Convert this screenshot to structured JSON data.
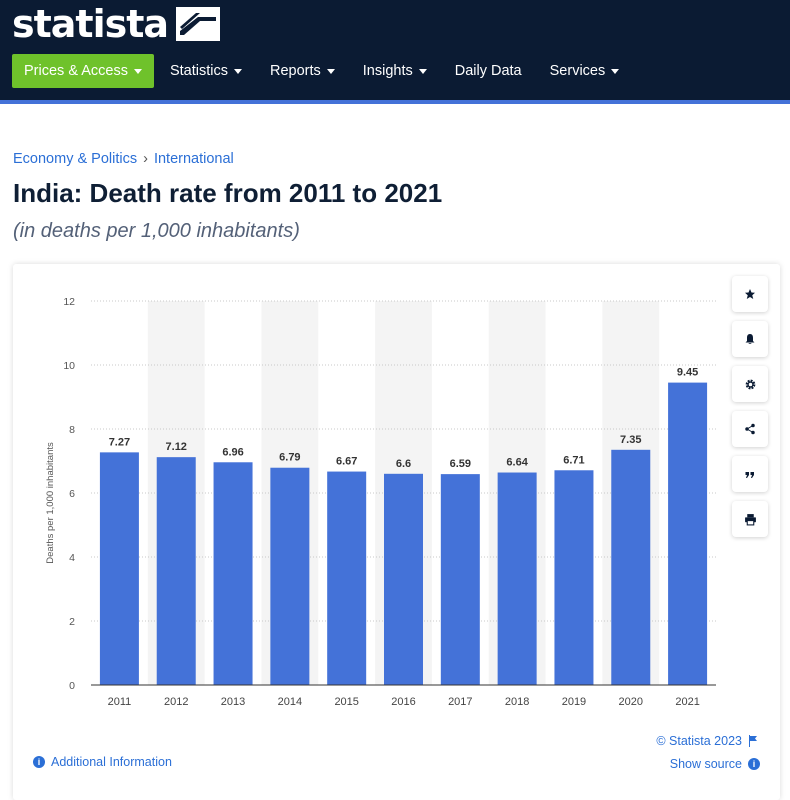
{
  "header": {
    "logo_text": "statista",
    "nav": [
      {
        "label": "Prices & Access",
        "caret": true
      },
      {
        "label": "Statistics",
        "caret": true
      },
      {
        "label": "Reports",
        "caret": true
      },
      {
        "label": "Insights",
        "caret": true
      },
      {
        "label": "Daily Data",
        "caret": false
      },
      {
        "label": "Services",
        "caret": true
      }
    ]
  },
  "breadcrumb": {
    "first": "Economy & Politics",
    "separator": "›",
    "second": "International"
  },
  "page_title": "India: Death rate from 2011 to 2021",
  "page_subtitle": "(in deaths per 1,000 inhabitants)",
  "chart_data": {
    "type": "bar",
    "categories": [
      "2011",
      "2012",
      "2013",
      "2014",
      "2015",
      "2016",
      "2017",
      "2018",
      "2019",
      "2020",
      "2021"
    ],
    "values": [
      7.27,
      7.12,
      6.96,
      6.79,
      6.67,
      6.6,
      6.59,
      6.64,
      6.71,
      7.35,
      9.45
    ],
    "value_labels": [
      "7.27",
      "7.12",
      "6.96",
      "6.79",
      "6.67",
      "6.6",
      "6.59",
      "6.64",
      "6.71",
      "7.35",
      "9.45"
    ],
    "ylabel": "Deaths per 1,000 inhabitants",
    "xlabel": "",
    "ylim": [
      0,
      12
    ],
    "yticks": [
      0,
      2,
      4,
      6,
      8,
      10,
      12
    ],
    "grid": true,
    "bar_color": "#4472d8"
  },
  "tools": [
    "star-icon",
    "bell-icon",
    "gear-icon",
    "share-icon",
    "quote-icon",
    "print-icon"
  ],
  "footer": {
    "copyright": "© Statista 2023",
    "show_source": "Show source",
    "additional_info": "Additional Information"
  }
}
